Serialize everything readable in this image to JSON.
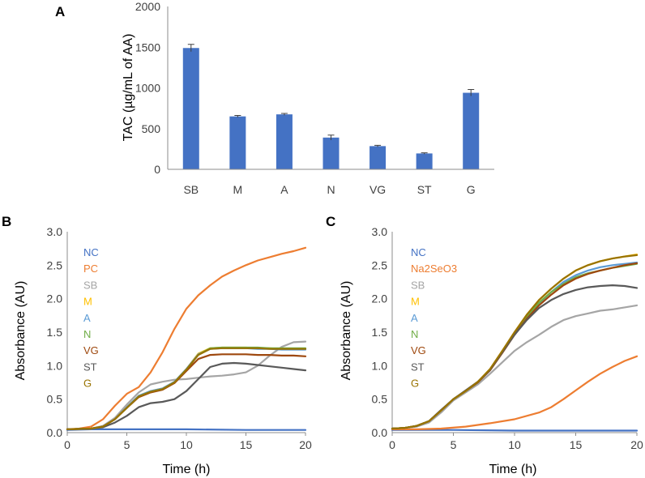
{
  "chart_data": [
    {
      "panel": "A",
      "type": "bar",
      "title": "",
      "xlabel": "",
      "ylabel": "TAC (µg/mL of AA)",
      "ylim": [
        0,
        2000
      ],
      "yticks": [
        "0",
        "500",
        "1000",
        "1500",
        "2000"
      ],
      "categories": [
        "SB",
        "M",
        "A",
        "N",
        "VG",
        "ST",
        "G"
      ],
      "values": [
        1490,
        650,
        675,
        390,
        285,
        195,
        940
      ],
      "errors": [
        45,
        12,
        12,
        30,
        10,
        8,
        40
      ],
      "bar_color": "#4472c4"
    },
    {
      "panel": "B",
      "type": "line",
      "xlabel": "Time (h)",
      "ylabel": "Absorbance (AU)",
      "xlim": [
        0,
        20
      ],
      "ylim": [
        0,
        3
      ],
      "xticks": [
        "0",
        "5",
        "10",
        "15",
        "20"
      ],
      "yticks": [
        "0.0",
        "0.5",
        "1.0",
        "1.5",
        "2.0",
        "2.5",
        "3.0"
      ],
      "legend_position": "top-left",
      "series": [
        {
          "name": "NC",
          "color": "#4472c4",
          "x": [
            0,
            2,
            5,
            10,
            15,
            20
          ],
          "y": [
            0.04,
            0.05,
            0.05,
            0.05,
            0.04,
            0.04
          ]
        },
        {
          "name": "PC",
          "color": "#ed7d31",
          "x": [
            0,
            1,
            2,
            3,
            4,
            5,
            6,
            7,
            8,
            9,
            10,
            11,
            12,
            13,
            14,
            15,
            16,
            17,
            18,
            19,
            20
          ],
          "y": [
            0.05,
            0.06,
            0.09,
            0.2,
            0.4,
            0.58,
            0.68,
            0.9,
            1.2,
            1.55,
            1.85,
            2.05,
            2.2,
            2.33,
            2.42,
            2.5,
            2.57,
            2.62,
            2.67,
            2.71,
            2.76
          ]
        },
        {
          "name": "SB",
          "color": "#a5a5a5",
          "x": [
            0,
            2,
            3,
            4,
            5,
            6,
            7,
            8,
            9,
            10,
            11,
            12,
            13,
            14,
            15,
            16,
            17,
            18,
            19,
            20
          ],
          "y": [
            0.05,
            0.06,
            0.1,
            0.22,
            0.42,
            0.6,
            0.72,
            0.76,
            0.79,
            0.8,
            0.82,
            0.84,
            0.85,
            0.87,
            0.9,
            1.0,
            1.15,
            1.28,
            1.35,
            1.36
          ]
        },
        {
          "name": "M",
          "color": "#ffc000",
          "x": [
            0,
            2,
            3,
            4,
            5,
            6,
            7,
            8,
            9,
            10,
            11,
            12,
            13,
            14,
            15,
            16,
            17,
            18,
            19,
            20
          ],
          "y": [
            0.05,
            0.06,
            0.09,
            0.2,
            0.38,
            0.55,
            0.62,
            0.66,
            0.76,
            0.95,
            1.18,
            1.26,
            1.27,
            1.27,
            1.27,
            1.26,
            1.26,
            1.25,
            1.25,
            1.25
          ]
        },
        {
          "name": "A",
          "color": "#5b9bd5",
          "x": [
            0,
            2,
            3,
            4,
            5,
            6,
            7,
            8,
            9,
            10,
            11,
            12,
            13,
            14,
            15,
            16,
            17,
            18,
            19,
            20
          ],
          "y": [
            0.05,
            0.06,
            0.09,
            0.2,
            0.38,
            0.55,
            0.62,
            0.66,
            0.76,
            0.95,
            1.17,
            1.25,
            1.26,
            1.26,
            1.26,
            1.25,
            1.25,
            1.24,
            1.24,
            1.24
          ]
        },
        {
          "name": "N",
          "color": "#70ad47",
          "x": [
            0,
            2,
            3,
            4,
            5,
            6,
            7,
            8,
            9,
            10,
            11,
            12,
            13,
            14,
            15,
            16,
            17,
            18,
            19,
            20
          ],
          "y": [
            0.05,
            0.06,
            0.09,
            0.2,
            0.37,
            0.54,
            0.61,
            0.65,
            0.75,
            0.94,
            1.16,
            1.26,
            1.27,
            1.27,
            1.27,
            1.27,
            1.26,
            1.26,
            1.26,
            1.26
          ]
        },
        {
          "name": "VG",
          "color": "#9e480e",
          "x": [
            0,
            2,
            3,
            4,
            5,
            6,
            7,
            8,
            9,
            10,
            11,
            12,
            13,
            14,
            15,
            16,
            17,
            18,
            19,
            20
          ],
          "y": [
            0.05,
            0.06,
            0.09,
            0.2,
            0.37,
            0.53,
            0.6,
            0.64,
            0.74,
            0.92,
            1.1,
            1.16,
            1.17,
            1.17,
            1.17,
            1.16,
            1.16,
            1.15,
            1.15,
            1.14
          ]
        },
        {
          "name": "ST",
          "color": "#595959",
          "x": [
            0,
            2,
            3,
            4,
            5,
            6,
            7,
            8,
            9,
            10,
            11,
            12,
            13,
            14,
            15,
            16,
            17,
            18,
            19,
            20
          ],
          "y": [
            0.05,
            0.06,
            0.08,
            0.15,
            0.25,
            0.38,
            0.44,
            0.46,
            0.5,
            0.62,
            0.8,
            0.98,
            1.03,
            1.04,
            1.03,
            1.01,
            0.99,
            0.97,
            0.95,
            0.93
          ]
        },
        {
          "name": "G",
          "color": "#997300",
          "x": [
            0,
            2,
            3,
            4,
            5,
            6,
            7,
            8,
            9,
            10,
            11,
            12,
            13,
            14,
            15,
            16,
            17,
            18,
            19,
            20
          ],
          "y": [
            0.05,
            0.06,
            0.09,
            0.2,
            0.37,
            0.54,
            0.61,
            0.65,
            0.75,
            0.94,
            1.16,
            1.25,
            1.26,
            1.26,
            1.26,
            1.26,
            1.25,
            1.25,
            1.25,
            1.25
          ]
        }
      ]
    },
    {
      "panel": "C",
      "type": "line",
      "xlabel": "Time (h)",
      "ylabel": "Absorbance (AU)",
      "xlim": [
        0,
        20
      ],
      "ylim": [
        0,
        3
      ],
      "xticks": [
        "0",
        "5",
        "10",
        "15",
        "20"
      ],
      "yticks": [
        "0.0",
        "0.5",
        "1.0",
        "1.5",
        "2.0",
        "2.5",
        "3.0"
      ],
      "legend_position": "top-left",
      "series": [
        {
          "name": "NC",
          "color": "#4472c4",
          "x": [
            0,
            5,
            10,
            15,
            20
          ],
          "y": [
            0.04,
            0.04,
            0.03,
            0.03,
            0.03
          ]
        },
        {
          "name": "Na2SeO3",
          "color": "#ed7d31",
          "x": [
            0,
            2,
            4,
            6,
            8,
            10,
            12,
            13,
            14,
            15,
            16,
            17,
            18,
            19,
            20
          ],
          "y": [
            0.05,
            0.05,
            0.06,
            0.09,
            0.14,
            0.2,
            0.3,
            0.38,
            0.5,
            0.63,
            0.76,
            0.88,
            0.98,
            1.07,
            1.14
          ]
        },
        {
          "name": "SB",
          "color": "#a5a5a5",
          "x": [
            0,
            1,
            2,
            3,
            4,
            5,
            6,
            7,
            8,
            9,
            10,
            11,
            12,
            13,
            14,
            15,
            16,
            17,
            18,
            19,
            20
          ],
          "y": [
            0.06,
            0.07,
            0.09,
            0.15,
            0.3,
            0.48,
            0.6,
            0.72,
            0.88,
            1.05,
            1.22,
            1.35,
            1.46,
            1.58,
            1.68,
            1.74,
            1.78,
            1.82,
            1.84,
            1.87,
            1.9
          ]
        },
        {
          "name": "M",
          "color": "#ffc000",
          "x": [
            0,
            1,
            2,
            3,
            4,
            5,
            6,
            7,
            8,
            9,
            10,
            11,
            12,
            13,
            14,
            15,
            16,
            17,
            18,
            19,
            20
          ],
          "y": [
            0.06,
            0.07,
            0.1,
            0.17,
            0.33,
            0.5,
            0.62,
            0.76,
            0.95,
            1.22,
            1.5,
            1.76,
            1.98,
            2.15,
            2.3,
            2.42,
            2.5,
            2.56,
            2.6,
            2.63,
            2.66
          ]
        },
        {
          "name": "A",
          "color": "#5b9bd5",
          "x": [
            0,
            1,
            2,
            3,
            4,
            5,
            6,
            7,
            8,
            9,
            10,
            11,
            12,
            13,
            14,
            15,
            16,
            17,
            18,
            19,
            20
          ],
          "y": [
            0.06,
            0.07,
            0.1,
            0.17,
            0.33,
            0.5,
            0.62,
            0.75,
            0.93,
            1.2,
            1.48,
            1.72,
            1.93,
            2.1,
            2.25,
            2.35,
            2.42,
            2.47,
            2.5,
            2.52,
            2.54
          ]
        },
        {
          "name": "N",
          "color": "#70ad47",
          "x": [
            0,
            1,
            2,
            3,
            4,
            5,
            6,
            7,
            8,
            9,
            10,
            11,
            12,
            13,
            14,
            15,
            16,
            17,
            18,
            19,
            20
          ],
          "y": [
            0.06,
            0.07,
            0.1,
            0.17,
            0.33,
            0.5,
            0.62,
            0.75,
            0.94,
            1.2,
            1.48,
            1.73,
            1.94,
            2.1,
            2.22,
            2.32,
            2.38,
            2.42,
            2.46,
            2.49,
            2.52
          ]
        },
        {
          "name": "VG",
          "color": "#9e480e",
          "x": [
            0,
            1,
            2,
            3,
            4,
            5,
            6,
            7,
            8,
            9,
            10,
            11,
            12,
            13,
            14,
            15,
            16,
            17,
            18,
            19,
            20
          ],
          "y": [
            0.06,
            0.07,
            0.1,
            0.17,
            0.33,
            0.5,
            0.62,
            0.75,
            0.93,
            1.19,
            1.46,
            1.7,
            1.9,
            2.06,
            2.2,
            2.3,
            2.37,
            2.42,
            2.46,
            2.5,
            2.53
          ]
        },
        {
          "name": "ST",
          "color": "#595959",
          "x": [
            0,
            1,
            2,
            3,
            4,
            5,
            6,
            7,
            8,
            9,
            10,
            11,
            12,
            13,
            14,
            15,
            16,
            17,
            18,
            19,
            20
          ],
          "y": [
            0.06,
            0.07,
            0.1,
            0.17,
            0.34,
            0.5,
            0.63,
            0.76,
            0.94,
            1.2,
            1.46,
            1.68,
            1.86,
            1.98,
            2.07,
            2.13,
            2.17,
            2.19,
            2.2,
            2.19,
            2.16
          ]
        },
        {
          "name": "G",
          "color": "#997300",
          "x": [
            0,
            1,
            2,
            3,
            4,
            5,
            6,
            7,
            8,
            9,
            10,
            11,
            12,
            13,
            14,
            15,
            16,
            17,
            18,
            19,
            20
          ],
          "y": [
            0.06,
            0.07,
            0.1,
            0.17,
            0.33,
            0.5,
            0.62,
            0.76,
            0.95,
            1.22,
            1.5,
            1.76,
            1.98,
            2.15,
            2.3,
            2.42,
            2.5,
            2.56,
            2.6,
            2.63,
            2.65
          ]
        }
      ]
    }
  ]
}
